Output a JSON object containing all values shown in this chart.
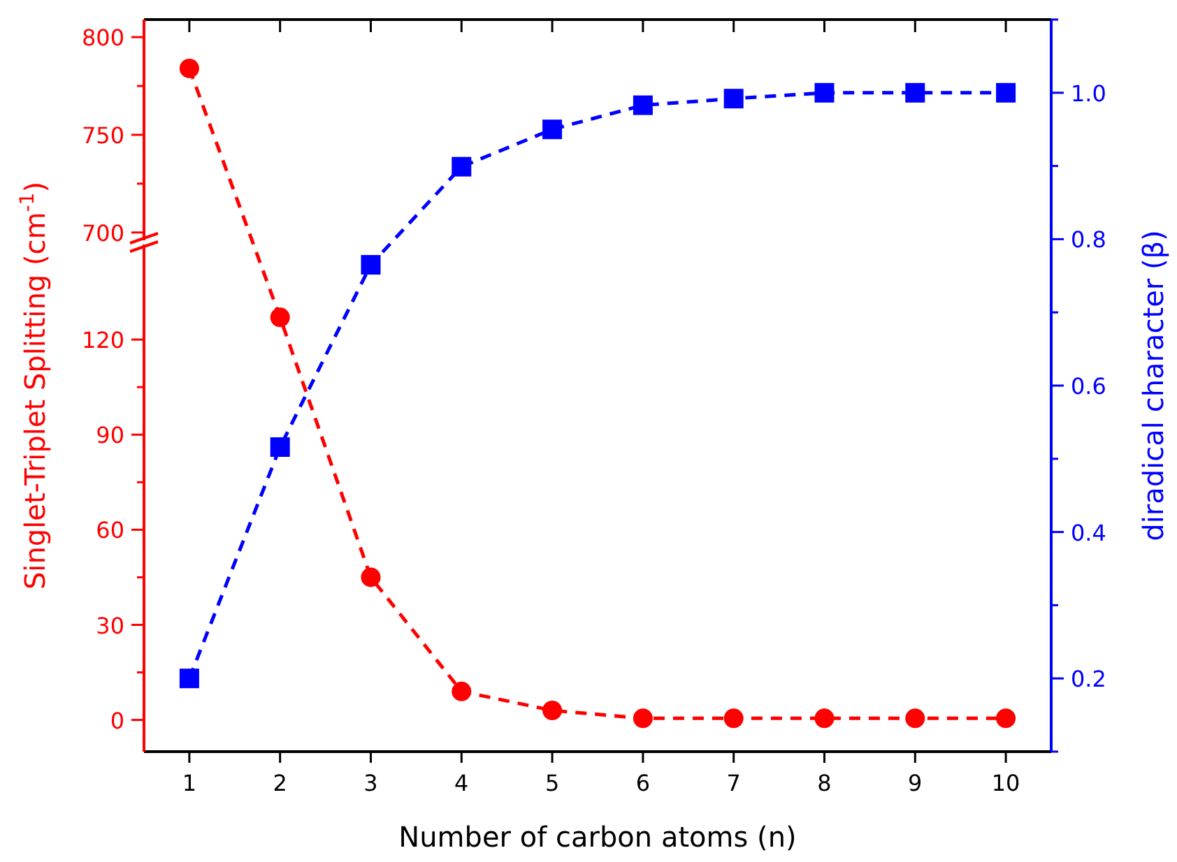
{
  "chart_data": [
    {
      "type": "line",
      "xlim": [
        0.5,
        10.5
      ],
      "xticks": [
        1,
        2,
        3,
        4,
        5,
        6,
        7,
        8,
        9,
        10
      ],
      "ylim": [
        696,
        809
      ],
      "yticks": [
        700,
        750,
        800
      ],
      "tick_labels": "y",
      "line_style": "dashed",
      "series": [
        {
          "color": "#ff0000",
          "marker": "circle",
          "x": [
            1
          ],
          "values": [
            784
          ]
        }
      ]
    },
    {
      "type": "line",
      "xlim": [
        0.5,
        10.5
      ],
      "xticks": [
        1,
        2,
        3,
        4,
        5,
        6,
        7,
        8,
        9,
        10
      ],
      "ylim": [
        -10,
        150
      ],
      "yticks": [
        0,
        30,
        60,
        90,
        120
      ],
      "xlabel": "Number of carbon atoms (n)",
      "ylabel": "Singlet-Triplet Splitting (cm$^{-1}$)",
      "line_style": "dashed",
      "series": [
        {
          "color": "#ff0000",
          "marker": "circle",
          "x": [
            2,
            3,
            4,
            5,
            6,
            7,
            8,
            9,
            10
          ],
          "values": [
            127,
            45,
            9,
            3,
            0.5,
            0.5,
            0.5,
            0.5,
            0.5
          ]
        }
      ]
    },
    {
      "type": "line",
      "x": [
        1,
        2,
        3,
        4,
        5,
        6,
        7,
        8,
        9,
        10
      ],
      "xlim": [
        0.5,
        10.5
      ],
      "y2lim": [
        0.1,
        1.1
      ],
      "y2ticks": [
        {
          "value": 0.2,
          "label": "0.2"
        },
        {
          "value": 0.4,
          "label": "0.4"
        },
        {
          "value": 0.6,
          "label": "0.6"
        },
        {
          "value": 0.8,
          "label": "0.8"
        },
        {
          "value": 1.0,
          "label": "1.0"
        }
      ],
      "y2label": "diradical character (β)",
      "tick_labels": "y",
      "line_style": "dashed",
      "series": [
        {
          "color": "#0000ff",
          "marker": "square",
          "axis": "y2",
          "values": [
            0.2,
            0.516,
            0.765,
            0.899,
            0.95,
            0.983,
            0.992,
            1.0,
            1.0,
            1.0
          ]
        }
      ]
    }
  ]
}
